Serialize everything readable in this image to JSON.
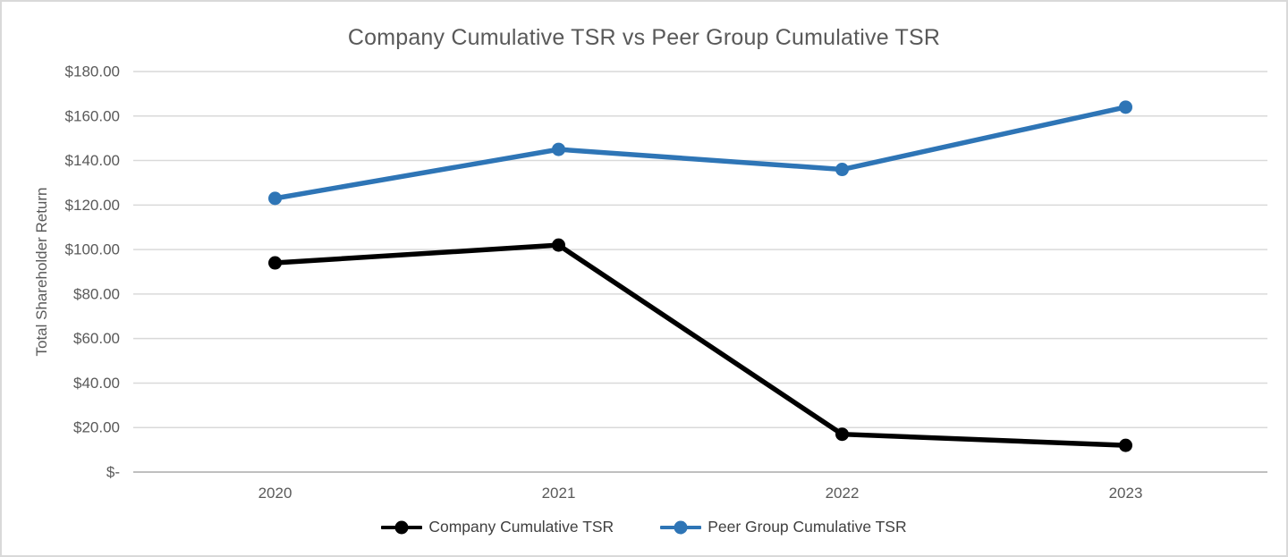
{
  "chart_data": {
    "type": "line",
    "title": "Company Cumulative TSR vs Peer Group Cumulative TSR",
    "ylabel": "Total Shareholder Return",
    "xlabel": "",
    "categories": [
      "2020",
      "2021",
      "2022",
      "2023"
    ],
    "series": [
      {
        "name": "Company Cumulative TSR",
        "color": "#000000",
        "marker": "circle",
        "values": [
          94,
          102,
          17,
          12
        ]
      },
      {
        "name": "Peer Group Cumulative TSR",
        "color": "#2E75B6",
        "marker": "circle",
        "values": [
          123,
          145,
          136,
          164
        ]
      }
    ],
    "ylim": [
      0,
      180
    ],
    "y_tick_step": 20,
    "y_tick_labels": [
      "$-",
      "$20.00",
      "$40.00",
      "$60.00",
      "$80.00",
      "$100.00",
      "$120.00",
      "$140.00",
      "$160.00",
      "$180.00"
    ],
    "grid": true,
    "legend_position": "bottom",
    "colors": {
      "gridline": "#D9D9D9",
      "axis_line": "#BFBFBF",
      "title_text": "#595959",
      "tick_text": "#595959",
      "legend_text": "#404040",
      "background": "#FFFFFF",
      "border": "#D9D9D9"
    }
  }
}
